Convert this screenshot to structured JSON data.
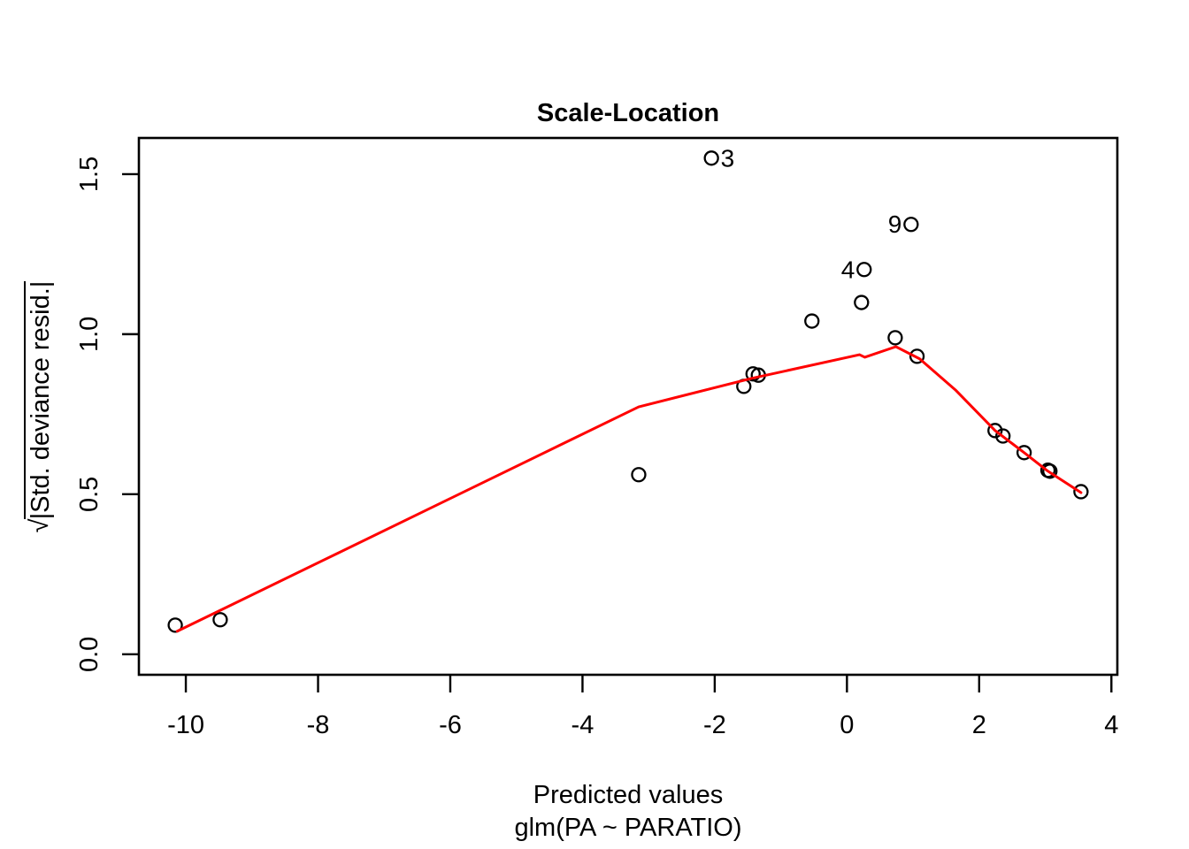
{
  "chart_data": {
    "type": "scatter",
    "title": "Scale-Location",
    "xlabel": "Predicted values",
    "xlabel_model": "glm(PA ~ PARATIO)",
    "ylabel": "√|Std. deviance resid.|",
    "ylabel_parts": {
      "root": "√",
      "radicand": "|Std. deviance resid.|"
    },
    "xlim": [
      -10.71,
      4.09
    ],
    "ylim": [
      -0.064,
      1.613
    ],
    "grid": false,
    "legend": null,
    "axis_color": "#000000",
    "point_color": "#000000",
    "smooth_color": "#FF0000",
    "xticks": [
      {
        "v": -10,
        "label": "-10"
      },
      {
        "v": -8,
        "label": "-8"
      },
      {
        "v": -6,
        "label": "-6"
      },
      {
        "v": -4,
        "label": "-4"
      },
      {
        "v": -2,
        "label": "-2"
      },
      {
        "v": 0,
        "label": "0"
      },
      {
        "v": 2,
        "label": "2"
      },
      {
        "v": 4,
        "label": "4"
      }
    ],
    "yticks": [
      {
        "v": 0,
        "label": "0.0"
      },
      {
        "v": 0.5,
        "label": "0.5"
      },
      {
        "v": 1,
        "label": "1.0"
      },
      {
        "v": 1.5,
        "label": "1.5"
      }
    ],
    "points": [
      {
        "x": -10.16,
        "y": 0.091
      },
      {
        "x": -9.48,
        "y": 0.108
      },
      {
        "x": -3.15,
        "y": 0.561
      },
      {
        "x": -2.05,
        "y": 1.55,
        "label": "3",
        "label_side": "right"
      },
      {
        "x": -1.56,
        "y": 0.837
      },
      {
        "x": -1.42,
        "y": 0.876
      },
      {
        "x": -1.34,
        "y": 0.872
      },
      {
        "x": -0.53,
        "y": 1.041
      },
      {
        "x": 0.22,
        "y": 1.099
      },
      {
        "x": 0.26,
        "y": 1.202,
        "label": "4",
        "label_side": "left"
      },
      {
        "x": 0.73,
        "y": 0.989
      },
      {
        "x": 0.97,
        "y": 1.343,
        "label": "9",
        "label_side": "left"
      },
      {
        "x": 1.06,
        "y": 0.931
      },
      {
        "x": 2.24,
        "y": 0.699
      },
      {
        "x": 2.36,
        "y": 0.682
      },
      {
        "x": 2.68,
        "y": 0.63
      },
      {
        "x": 3.04,
        "y": 0.575
      },
      {
        "x": 3.07,
        "y": 0.572
      },
      {
        "x": 3.54,
        "y": 0.508
      }
    ],
    "smooth_line": [
      {
        "x": -10.13,
        "y": 0.072
      },
      {
        "x": -3.15,
        "y": 0.773
      },
      {
        "x": -1.44,
        "y": 0.862
      },
      {
        "x": 0.19,
        "y": 0.936
      },
      {
        "x": 0.27,
        "y": 0.928
      },
      {
        "x": 0.74,
        "y": 0.961
      },
      {
        "x": 1.1,
        "y": 0.923
      },
      {
        "x": 1.64,
        "y": 0.826
      },
      {
        "x": 2.24,
        "y": 0.699
      },
      {
        "x": 2.68,
        "y": 0.63
      },
      {
        "x": 3.04,
        "y": 0.572
      },
      {
        "x": 3.54,
        "y": 0.505
      }
    ]
  }
}
